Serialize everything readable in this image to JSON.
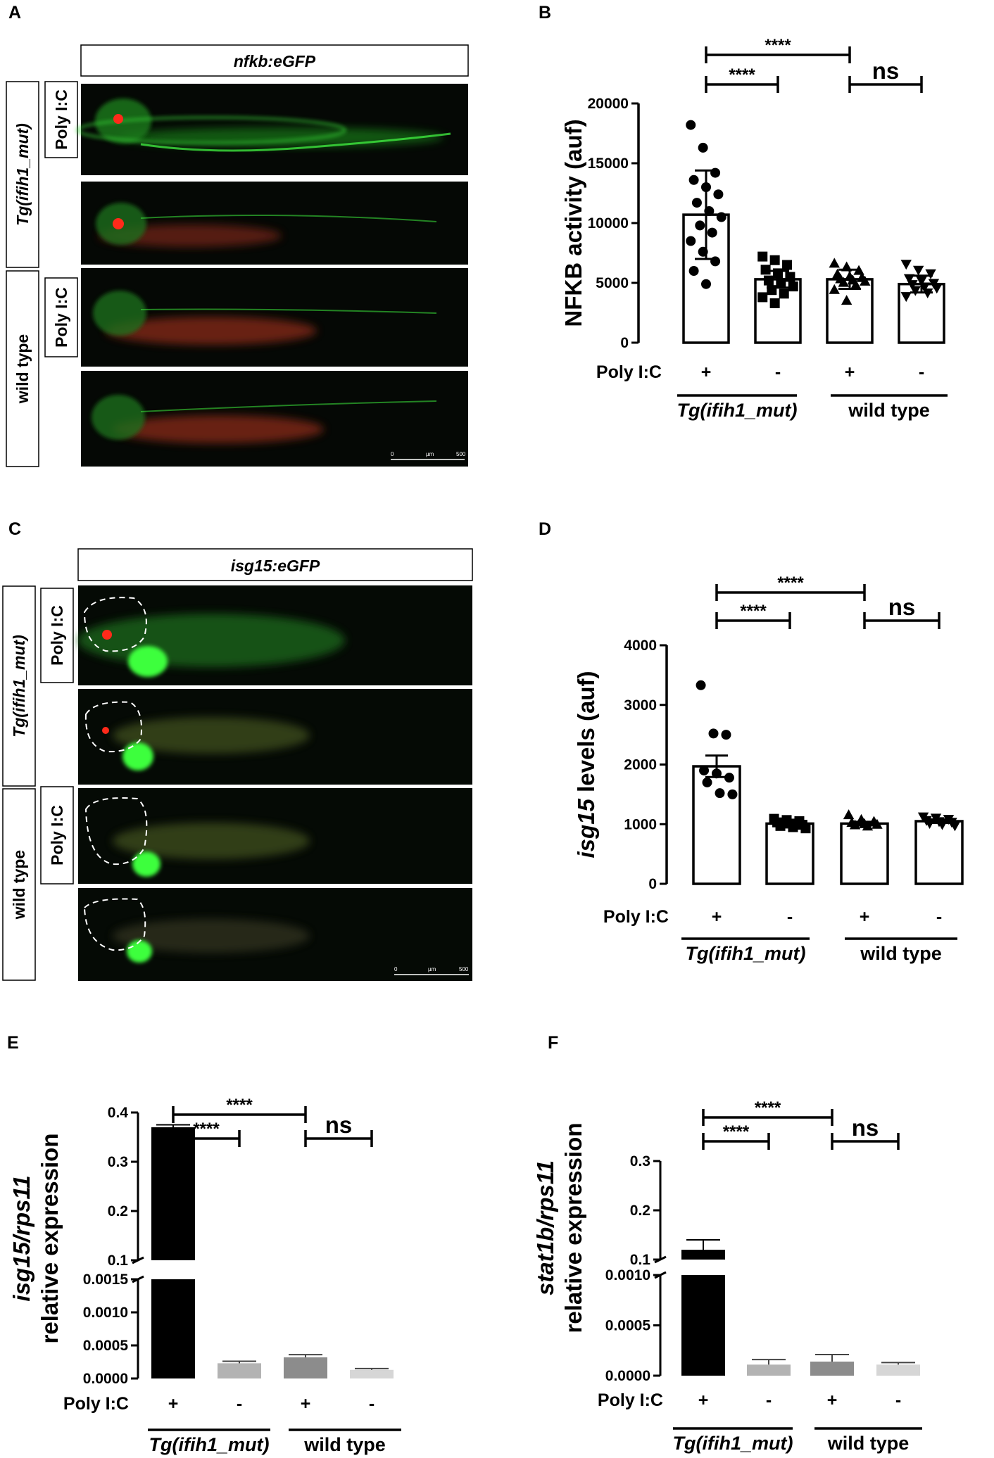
{
  "panels": {
    "A": {
      "letter": "A",
      "header": "nfkb:eGFP",
      "row_group_1": "Tg(ifih1_mut)",
      "row_group_2": "wild type",
      "treat_label_1": "Poly I:C",
      "treat_label_2": "Poly I:C",
      "scale_bar": {
        "min": "0",
        "unit": "µm",
        "max": "500"
      }
    },
    "B": {
      "letter": "B",
      "treat_row_label": "Poly I:C",
      "treatment_signs": [
        "+",
        "-",
        "+",
        "-"
      ],
      "group_1": "Tg(ifih1_mut)",
      "group_2": "wild type",
      "sig_main": "****",
      "sig_inner": "****",
      "sig_ns": "ns"
    },
    "C": {
      "letter": "C",
      "header": "isg15:eGFP",
      "row_group_1": "Tg(ifih1_mut)",
      "row_group_2": "wild type",
      "treat_label_1": "Poly I:C",
      "treat_label_2": "Poly I:C",
      "scale_bar": {
        "min": "0",
        "unit": "µm",
        "max": "500"
      }
    },
    "D": {
      "letter": "D",
      "treat_row_label": "Poly I:C",
      "treatment_signs": [
        "+",
        "-",
        "+",
        "-"
      ],
      "group_1": "Tg(ifih1_mut)",
      "group_2": "wild type",
      "sig_main": "****",
      "sig_inner": "****",
      "sig_ns": "ns"
    },
    "E": {
      "letter": "E",
      "treat_row_label": "Poly I:C",
      "treatment_signs": [
        "+",
        "-",
        "+",
        "-"
      ],
      "group_1": "Tg(ifih1_mut)",
      "group_2": "wild type",
      "ylabel_top": "isg15/rps11",
      "ylabel_bottom": "relative expression",
      "sig_main": "****",
      "sig_inner": "****",
      "sig_ns": "ns"
    },
    "F": {
      "letter": "F",
      "treat_row_label": "Poly I:C",
      "treatment_signs": [
        "+",
        "-",
        "+",
        "-"
      ],
      "group_1": "Tg(ifih1_mut)",
      "group_2": "wild type",
      "ylabel_top": "stat1b/rps11",
      "ylabel_bottom": "relative expression",
      "sig_main": "****",
      "sig_inner": "****",
      "sig_ns": "ns"
    }
  },
  "chart_data": [
    {
      "panel": "B",
      "type": "bar",
      "ylabel": "NFKB activity (auf)",
      "ylim": [
        0,
        20000
      ],
      "yticks": [
        "0",
        "5000",
        "10000",
        "15000",
        "20000"
      ],
      "categories": [
        "+",
        "-",
        "+",
        "-"
      ],
      "values": [
        10700,
        5300,
        5300,
        4900
      ],
      "errors": [
        3700,
        700,
        800,
        700
      ],
      "markers": [
        "circle",
        "square",
        "triangle-up",
        "triangle-down"
      ],
      "points": [
        [
          18200,
          16300,
          14200,
          13600,
          13000,
          12400,
          11700,
          11000,
          10500,
          9800,
          9200,
          8500,
          7600,
          6800,
          6000,
          4900
        ],
        [
          7200,
          6900,
          6500,
          6100,
          5800,
          5500,
          5200,
          5000,
          4700,
          4400,
          4100,
          3800,
          3300
        ],
        [
          6600,
          6300,
          6000,
          5700,
          5500,
          5400,
          5300,
          5200,
          5100,
          5000,
          4800,
          4400,
          3500
        ],
        [
          6600,
          6100,
          5800,
          5400,
          5200,
          5000,
          4900,
          4700,
          4600,
          4400,
          4200,
          3900
        ]
      ]
    },
    {
      "panel": "D",
      "type": "bar",
      "ylabel_italic": "isg15",
      "ylabel_rest": " levels (auf)",
      "ylim": [
        0,
        4000
      ],
      "yticks": [
        "0",
        "1000",
        "2000",
        "3000",
        "4000"
      ],
      "categories": [
        "+",
        "-",
        "+",
        "-"
      ],
      "values": [
        1970,
        1010,
        1010,
        1050
      ],
      "errors": [
        180,
        25,
        30,
        30
      ],
      "markers": [
        "circle",
        "square",
        "triangle-up",
        "triangle-down"
      ],
      "points": [
        [
          3330,
          2520,
          2500,
          1900,
          1850,
          1780,
          1700,
          1520,
          1500
        ],
        [
          1090,
          1070,
          1050,
          1030,
          1010,
          990,
          970,
          950,
          930
        ],
        [
          1150,
          1070,
          1040,
          1020,
          1000,
          990,
          980,
          960
        ],
        [
          1130,
          1110,
          1090,
          1070,
          1050,
          1040,
          1020,
          1000,
          980
        ]
      ]
    },
    {
      "panel": "E",
      "type": "bar",
      "ylim_upper": [
        0.1,
        0.4
      ],
      "ylim_lower": [
        0,
        0.0015
      ],
      "yticks_upper": [
        "0.1",
        "0.2",
        "0.3",
        "0.4"
      ],
      "yticks_lower": [
        "0.0000",
        "0.0005",
        "0.0010",
        "0.0015"
      ],
      "categories": [
        "+",
        "-",
        "+",
        "-"
      ],
      "values": [
        0.37,
        0.00023,
        0.00032,
        0.00013
      ],
      "errors": [
        0.005,
        3e-05,
        4e-05,
        2e-05
      ],
      "colors": [
        "#000000",
        "#b3b3b3",
        "#8c8c8c",
        "#d6d6d6"
      ]
    },
    {
      "panel": "F",
      "type": "bar",
      "ylim_upper": [
        0.1,
        0.3
      ],
      "ylim_lower": [
        0,
        0.001
      ],
      "yticks_upper": [
        "0.1",
        "0.2",
        "0.3"
      ],
      "yticks_lower": [
        "0.0000",
        "0.0005",
        "0.0010"
      ],
      "categories": [
        "+",
        "-",
        "+",
        "-"
      ],
      "values": [
        0.12,
        0.00011,
        0.00014,
        0.00011
      ],
      "errors": [
        0.02,
        5e-05,
        7e-05,
        2e-05
      ],
      "colors": [
        "#000000",
        "#b3b3b3",
        "#8c8c8c",
        "#d6d6d6"
      ]
    }
  ]
}
